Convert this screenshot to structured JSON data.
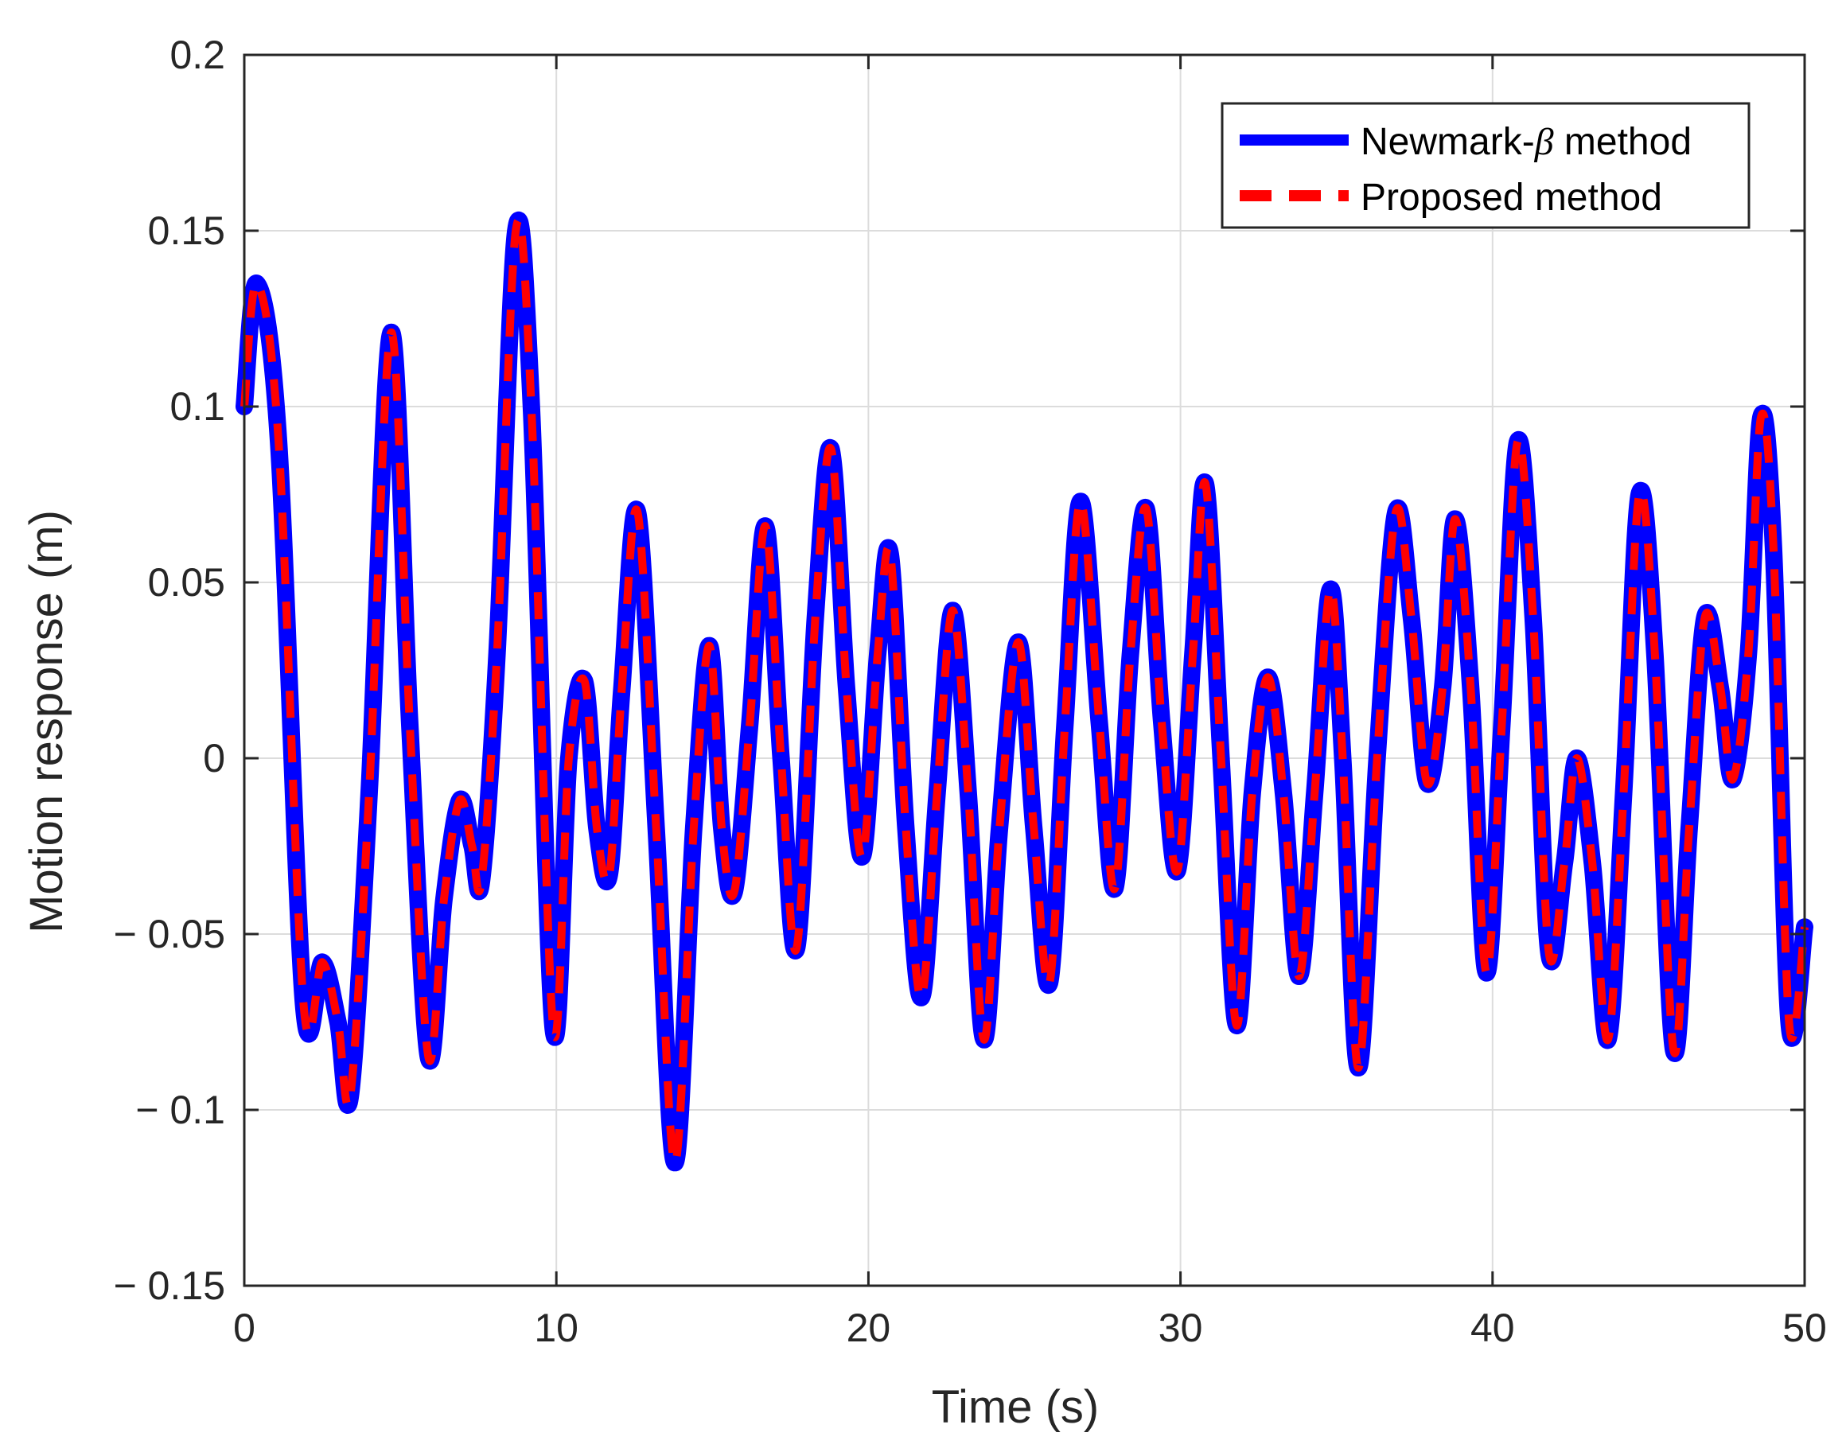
{
  "chart_data": {
    "type": "line",
    "title": "",
    "xlabel": "Time (s)",
    "ylabel": "Motion response (m)",
    "xlim": [
      0,
      50
    ],
    "ylim": [
      -0.15,
      0.2
    ],
    "grid": true,
    "legend_position": "top-right",
    "x_ticks": [
      0,
      10,
      20,
      30,
      40,
      50
    ],
    "x_tick_labels": [
      "0",
      "10",
      "20",
      "30",
      "40",
      "50"
    ],
    "y_ticks": [
      0.2,
      0.15,
      0.1,
      0.05,
      0,
      -0.05,
      -0.1,
      -0.15
    ],
    "y_tick_labels": [
      "0.2",
      "0.15",
      "0.1",
      "0.05",
      "0",
      "− 0.05",
      "− 0.1",
      "− 0.15"
    ],
    "legend": {
      "newmark_prefix": "Newmark-",
      "newmark_symbol": "β",
      "newmark_suffix": " method",
      "proposed": "Proposed method"
    },
    "series": [
      {
        "name": "Newmark-β method",
        "color": "#0000ff",
        "style": "solid",
        "x": [
          0,
          0.4,
          1.1,
          1.9,
          2.5,
          3.0,
          3.4,
          4.0,
          4.7,
          5.3,
          5.9,
          6.4,
          6.9,
          7.3,
          7.6,
          8.1,
          8.7,
          9.2,
          9.9,
          10.4,
          10.9,
          11.3,
          11.7,
          12.1,
          12.6,
          13.2,
          13.8,
          14.4,
          14.9,
          15.3,
          15.7,
          16.2,
          16.7,
          17.2,
          17.7,
          18.3,
          18.8,
          19.3,
          19.8,
          20.3,
          20.7,
          21.2,
          21.7,
          22.2,
          22.7,
          23.2,
          23.7,
          24.2,
          24.8,
          25.3,
          25.8,
          26.3,
          26.8,
          27.4,
          27.9,
          28.4,
          28.9,
          29.4,
          29.9,
          30.4,
          30.8,
          31.3,
          31.8,
          32.3,
          32.8,
          33.3,
          33.8,
          34.3,
          34.8,
          35.2,
          35.7,
          36.3,
          36.9,
          37.4,
          37.9,
          38.4,
          38.8,
          39.3,
          39.8,
          40.3,
          40.8,
          41.3,
          41.8,
          42.3,
          42.7,
          43.2,
          43.7,
          44.2,
          44.7,
          45.2,
          45.8,
          46.3,
          46.8,
          47.3,
          47.7,
          48.2,
          48.6,
          49.0,
          49.5,
          50.0
        ],
        "y": [
          0.1,
          0.135,
          0.09,
          -0.07,
          -0.058,
          -0.075,
          -0.096,
          -0.01,
          0.121,
          0.01,
          -0.085,
          -0.04,
          -0.012,
          -0.025,
          -0.035,
          0.03,
          0.15,
          0.1,
          -0.077,
          0.0,
          0.022,
          -0.02,
          -0.033,
          0.02,
          0.07,
          -0.02,
          -0.115,
          -0.02,
          0.032,
          -0.02,
          -0.038,
          0.01,
          0.066,
          0.0,
          -0.054,
          0.04,
          0.088,
          0.02,
          -0.028,
          0.03,
          0.058,
          -0.02,
          -0.068,
          -0.01,
          0.042,
          -0.01,
          -0.08,
          -0.02,
          0.033,
          -0.02,
          -0.064,
          0.01,
          0.073,
          0.01,
          -0.037,
          0.03,
          0.071,
          0.01,
          -0.032,
          0.03,
          0.078,
          0.0,
          -0.076,
          -0.01,
          0.023,
          -0.01,
          -0.062,
          -0.01,
          0.048,
          0.0,
          -0.088,
          0.0,
          0.07,
          0.04,
          -0.007,
          0.02,
          0.068,
          0.02,
          -0.061,
          0.01,
          0.09,
          0.04,
          -0.055,
          -0.03,
          0.0,
          -0.03,
          -0.08,
          -0.01,
          0.075,
          0.03,
          -0.083,
          -0.02,
          0.04,
          0.02,
          -0.006,
          0.03,
          0.097,
          0.06,
          -0.075,
          -0.048
        ]
      },
      {
        "name": "Proposed method",
        "color": "#ff0000",
        "style": "dashed",
        "x": [
          0,
          0.4,
          1.1,
          1.9,
          2.5,
          3.0,
          3.4,
          4.0,
          4.7,
          5.3,
          5.9,
          6.4,
          6.9,
          7.3,
          7.6,
          8.1,
          8.7,
          9.2,
          9.9,
          10.4,
          10.9,
          11.3,
          11.7,
          12.1,
          12.6,
          13.2,
          13.8,
          14.4,
          14.9,
          15.3,
          15.7,
          16.2,
          16.7,
          17.2,
          17.7,
          18.3,
          18.8,
          19.3,
          19.8,
          20.3,
          20.7,
          21.2,
          21.7,
          22.2,
          22.7,
          23.2,
          23.7,
          24.2,
          24.8,
          25.3,
          25.8,
          26.3,
          26.8,
          27.4,
          27.9,
          28.4,
          28.9,
          29.4,
          29.9,
          30.4,
          30.8,
          31.3,
          31.8,
          32.3,
          32.8,
          33.3,
          33.8,
          34.3,
          34.8,
          35.2,
          35.7,
          36.3,
          36.9,
          37.4,
          37.9,
          38.4,
          38.8,
          39.3,
          39.8,
          40.3,
          40.8,
          41.3,
          41.8,
          42.3,
          42.7,
          43.2,
          43.7,
          44.2,
          44.7,
          45.2,
          45.8,
          46.3,
          46.8,
          47.3,
          47.7,
          48.2,
          48.6,
          49.0,
          49.5,
          50.0
        ],
        "y": [
          0.1,
          0.135,
          0.09,
          -0.07,
          -0.058,
          -0.075,
          -0.096,
          -0.01,
          0.121,
          0.01,
          -0.085,
          -0.04,
          -0.012,
          -0.025,
          -0.035,
          0.03,
          0.15,
          0.1,
          -0.077,
          0.0,
          0.022,
          -0.02,
          -0.033,
          0.02,
          0.07,
          -0.02,
          -0.115,
          -0.02,
          0.032,
          -0.02,
          -0.038,
          0.01,
          0.066,
          0.0,
          -0.054,
          0.04,
          0.088,
          0.02,
          -0.028,
          0.03,
          0.058,
          -0.02,
          -0.068,
          -0.01,
          0.042,
          -0.01,
          -0.08,
          -0.02,
          0.033,
          -0.02,
          -0.064,
          0.01,
          0.073,
          0.01,
          -0.037,
          0.03,
          0.071,
          0.01,
          -0.032,
          0.03,
          0.078,
          0.0,
          -0.076,
          -0.01,
          0.023,
          -0.01,
          -0.062,
          -0.01,
          0.048,
          0.0,
          -0.088,
          0.0,
          0.07,
          0.04,
          -0.007,
          0.02,
          0.068,
          0.02,
          -0.061,
          0.01,
          0.09,
          0.04,
          -0.055,
          -0.03,
          0.0,
          -0.03,
          -0.08,
          -0.01,
          0.075,
          0.03,
          -0.083,
          -0.02,
          0.04,
          0.02,
          -0.006,
          0.03,
          0.097,
          0.06,
          -0.075,
          -0.048
        ]
      }
    ]
  }
}
